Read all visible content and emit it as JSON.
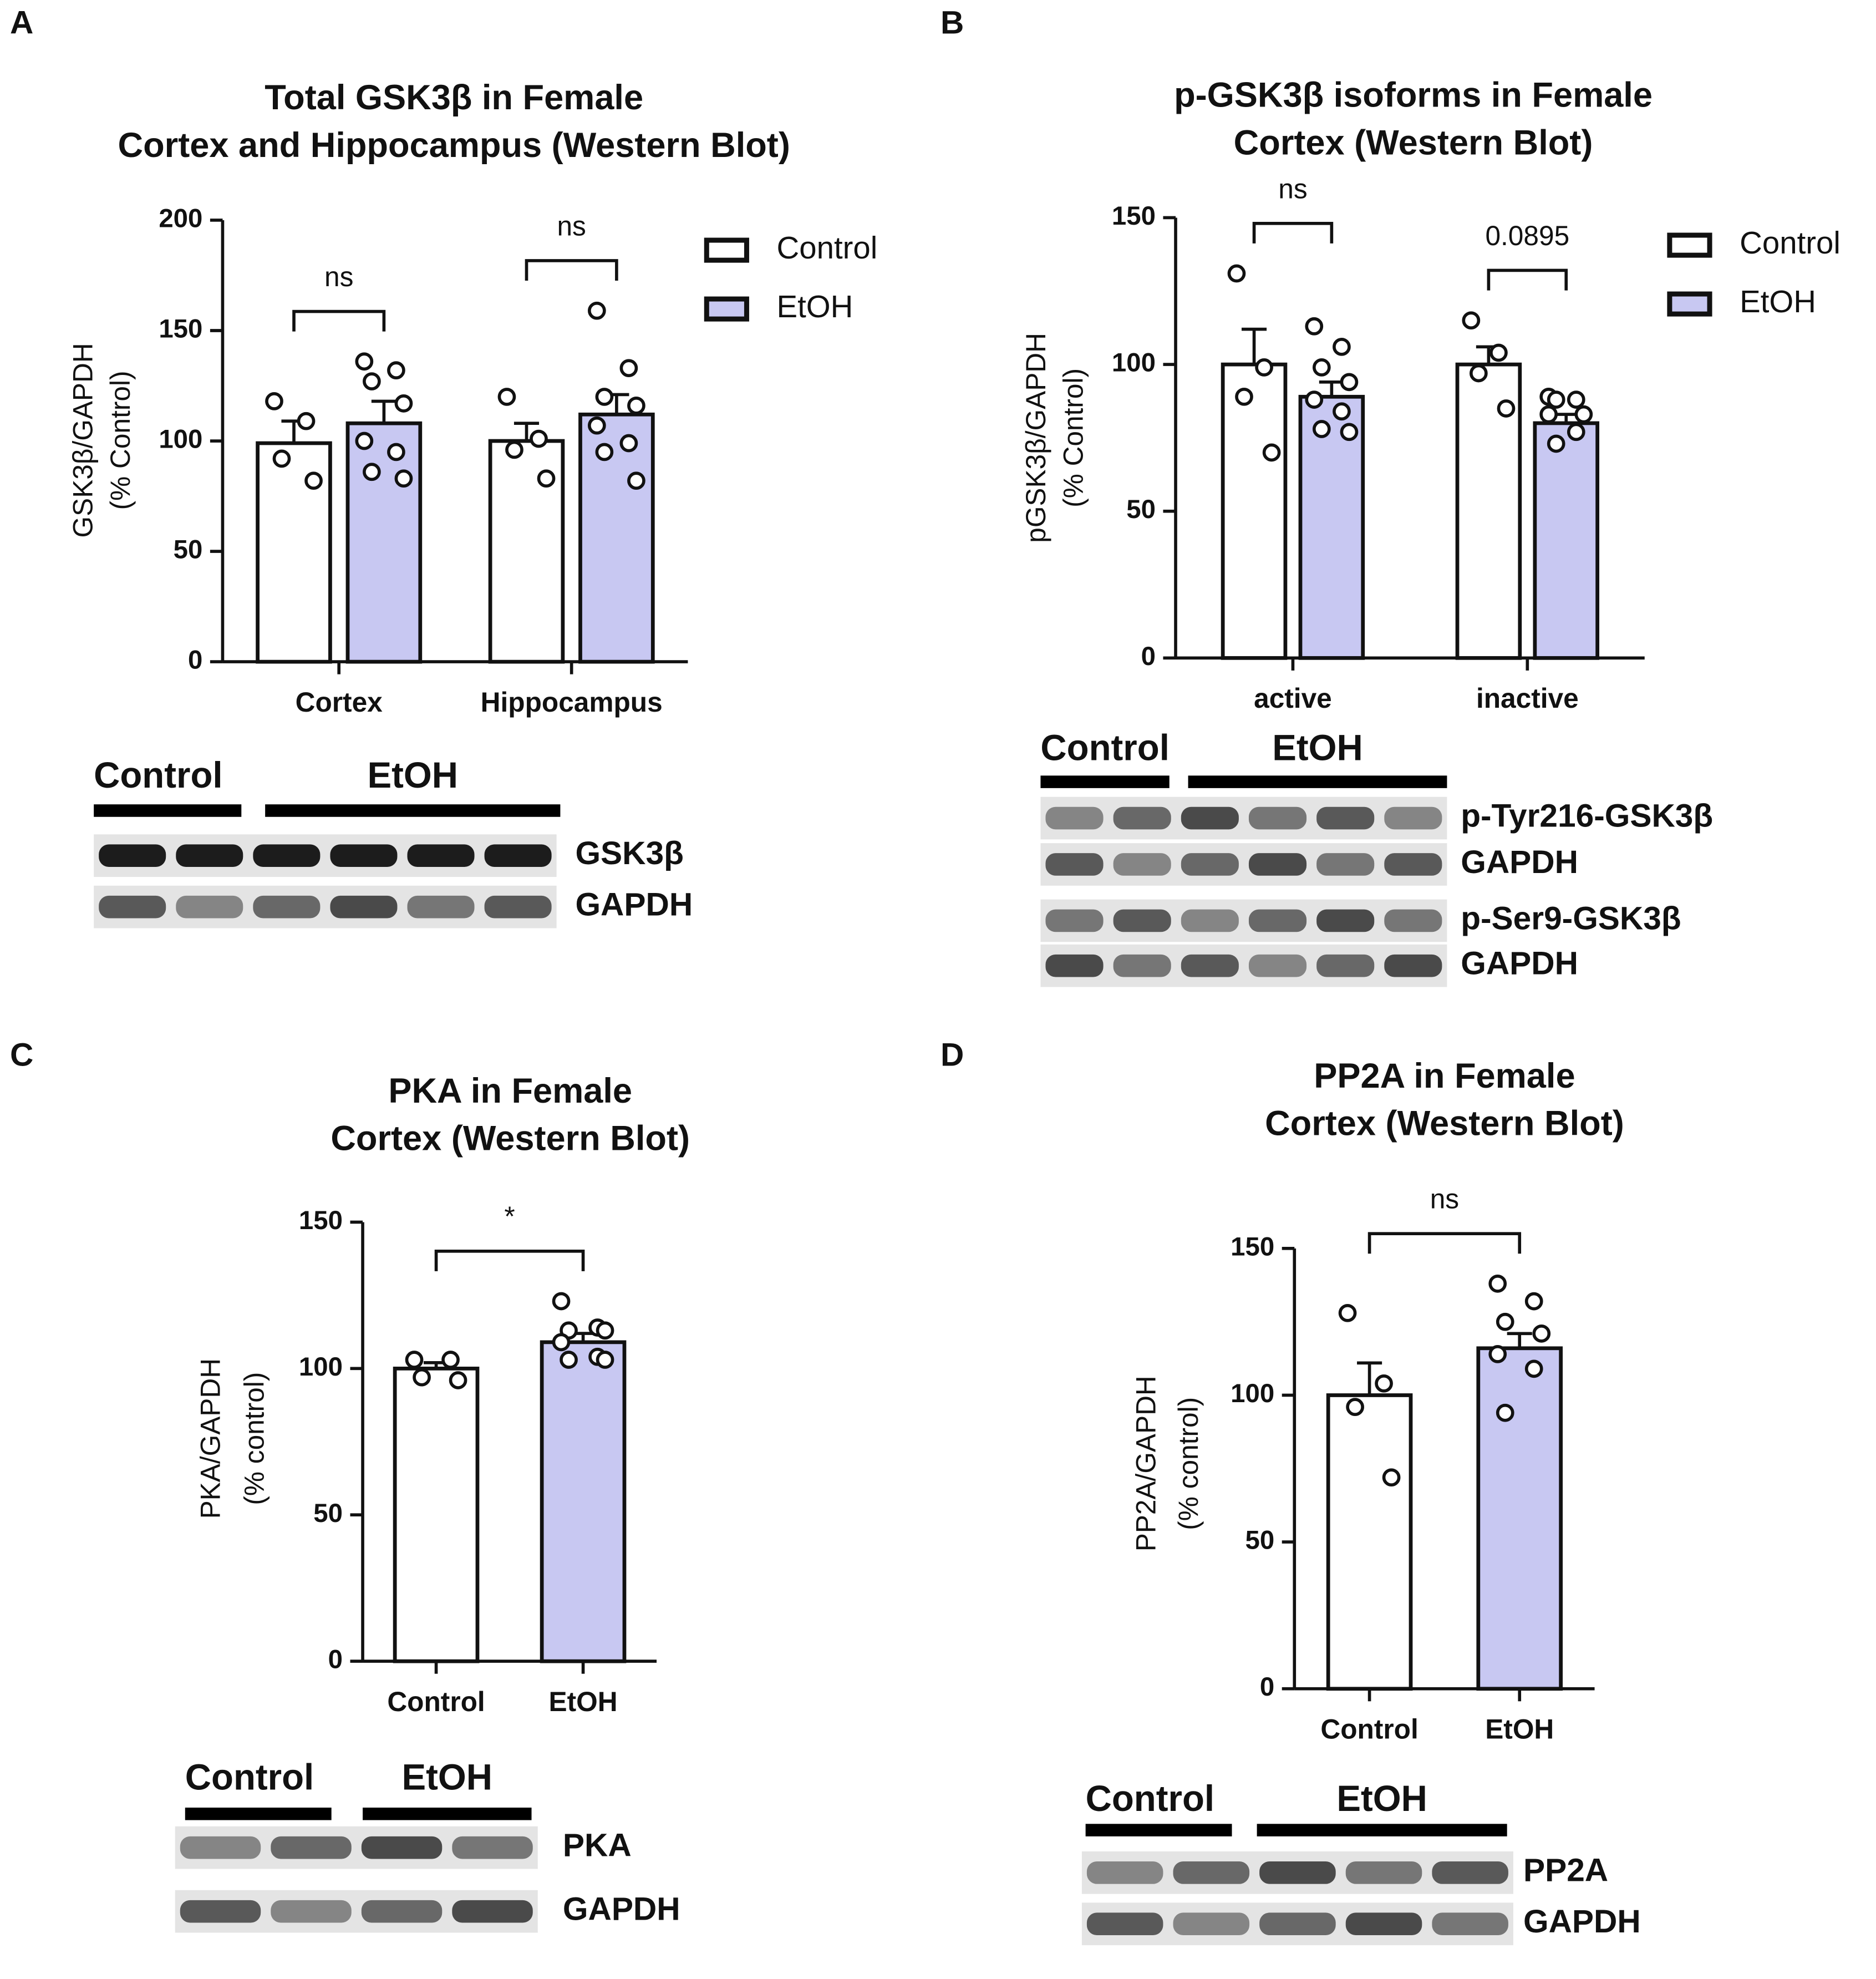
{
  "chart_data": [
    {
      "panel": "A",
      "type": "bar",
      "title": [
        "Total GSK3β in Female",
        "Cortex and Hippocampus (Western Blot)"
      ],
      "y_label": [
        "GSK3β/GAPDH",
        "(% Control)"
      ],
      "categories": [
        "Cortex",
        "Hippocampus"
      ],
      "series": [
        {
          "name": "Control",
          "color": "#ffffff",
          "values": [
            99,
            100
          ],
          "errors": [
            10,
            8
          ],
          "points": [
            [
              118,
              109,
              92,
              82
            ],
            [
              120,
              101,
              96,
              83
            ]
          ]
        },
        {
          "name": "EtOH",
          "color": "#c8c8f2",
          "values": [
            108,
            112
          ],
          "errors": [
            10,
            9
          ],
          "points": [
            [
              136,
              132,
              127,
              117,
              100,
              95,
              86,
              83
            ],
            [
              159,
              133,
              120,
              116,
              107,
              99,
              95,
              82
            ]
          ]
        }
      ],
      "annotations": [
        "ns",
        "ns"
      ],
      "ylim": [
        0,
        200
      ],
      "yticks": [
        0,
        50,
        100,
        150,
        200
      ],
      "blot": {
        "groups": [
          "Control",
          "EtOH"
        ],
        "bands": [
          "GSK3β",
          "GAPDH"
        ]
      }
    },
    {
      "panel": "B",
      "type": "bar",
      "title": [
        "p-GSK3β isoforms in Female",
        "Cortex (Western Blot)"
      ],
      "y_label": [
        "pGSK3β/GAPDH",
        "(% Control)"
      ],
      "categories": [
        "active",
        "inactive"
      ],
      "series": [
        {
          "name": "Control",
          "color": "#ffffff",
          "values": [
            100,
            100
          ],
          "errors": [
            12,
            6
          ],
          "points": [
            [
              131,
              99,
              89,
              70
            ],
            [
              115,
              104,
              97,
              85
            ]
          ]
        },
        {
          "name": "EtOH",
          "color": "#c8c8f2",
          "values": [
            89,
            80
          ],
          "errors": [
            5,
            3
          ],
          "points": [
            [
              113,
              106,
              99,
              94,
              88,
              84,
              78,
              77
            ],
            [
              89,
              88,
              88,
              83,
              83,
              77,
              73
            ]
          ]
        }
      ],
      "annotations": [
        "ns",
        "0.0895"
      ],
      "ylim": [
        0,
        150
      ],
      "yticks": [
        0,
        50,
        100,
        150
      ],
      "blot": {
        "groups": [
          "Control",
          "EtOH"
        ],
        "bands": [
          "p-Tyr216-GSK3β",
          "GAPDH",
          "p-Ser9-GSK3β",
          "GAPDH"
        ]
      }
    },
    {
      "panel": "C",
      "type": "bar",
      "title": [
        "PKA in Female",
        "Cortex (Western Blot)"
      ],
      "y_label": [
        "PKA/GAPDH",
        "(% control)"
      ],
      "categories": [
        "Control",
        "EtOH"
      ],
      "values": [
        100,
        109
      ],
      "errors": [
        2,
        3
      ],
      "colors": [
        "#ffffff",
        "#c8c8f2"
      ],
      "points": [
        [
          103,
          103,
          97,
          96
        ],
        [
          123,
          114,
          113,
          113,
          109,
          104,
          103,
          103
        ]
      ],
      "annotation": "*",
      "ylim": [
        0,
        150
      ],
      "yticks": [
        0,
        50,
        100,
        150
      ],
      "blot": {
        "groups": [
          "Control",
          "EtOH"
        ],
        "bands": [
          "PKA",
          "GAPDH"
        ]
      }
    },
    {
      "panel": "D",
      "type": "bar",
      "title": [
        "PP2A in Female",
        "Cortex (Western Blot)"
      ],
      "y_label": [
        "PP2A/GAPDH",
        "(% control)"
      ],
      "categories": [
        "Control",
        "EtOH"
      ],
      "values": [
        100,
        116
      ],
      "errors": [
        11,
        5
      ],
      "colors": [
        "#ffffff",
        "#c8c8f2"
      ],
      "points": [
        [
          128,
          104,
          96,
          72
        ],
        [
          138,
          132,
          125,
          121,
          114,
          109,
          94
        ]
      ],
      "annotation": "ns",
      "ylim": [
        0,
        150
      ],
      "yticks": [
        0,
        50,
        100,
        150
      ],
      "blot": {
        "groups": [
          "Control",
          "EtOH"
        ],
        "bands": [
          "PP2A",
          "GAPDH"
        ]
      }
    }
  ]
}
